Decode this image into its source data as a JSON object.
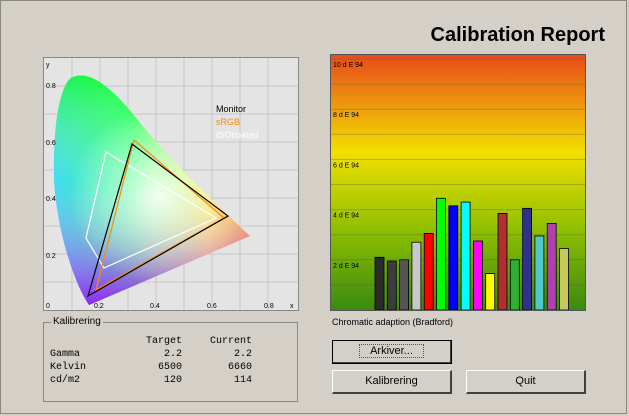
{
  "title": "Calibration Report",
  "gamut_chart": {
    "axis_x_label": "x",
    "axis_y_label": "y",
    "x_ticks": [
      "0",
      "0.2",
      "0.4",
      "0.6",
      "0.8"
    ],
    "y_ticks": [
      "0.2",
      "0.4",
      "0.6",
      "0.8"
    ],
    "legend": [
      {
        "name": "Monitor",
        "color": "#000000"
      },
      {
        "name": "sRGB",
        "color": "#ff8a00"
      },
      {
        "name": "ISOcoated",
        "color": "#ffffff"
      }
    ]
  },
  "chart_data": {
    "type": "bar",
    "y_tick_labels": [
      "2 d E 94",
      "4 d E 94",
      "6 d E 94",
      "8 d E 94",
      "10 d E 94"
    ],
    "ylim": [
      0,
      10
    ],
    "grid": true,
    "values": [
      2.1,
      1.95,
      2.0,
      2.7,
      3.05,
      4.45,
      4.15,
      4.3,
      2.75,
      1.45,
      3.85,
      2.0,
      4.05,
      2.95,
      3.45,
      2.45
    ],
    "colors": [
      "#2a2a2a",
      "#3c3c3c",
      "#555555",
      "#c8c8c8",
      "#ff0000",
      "#00ff00",
      "#0000ff",
      "#00ffff",
      "#ff00ff",
      "#ffff00",
      "#b03030",
      "#30b030",
      "#303090",
      "#50c8c8",
      "#b040b0",
      "#c8c860"
    ]
  },
  "caption": "Chromatic adaption (Bradford)",
  "kalibrering": {
    "group_title": "Kalibrering",
    "col_target": "Target",
    "col_current": "Current",
    "rows": [
      {
        "label": "Gamma",
        "target": "2.2",
        "current": "2.2"
      },
      {
        "label": "Kelvin",
        "target": "6500",
        "current": "6660"
      },
      {
        "label": "cd/m2",
        "target": "120",
        "current": "114"
      }
    ]
  },
  "buttons": {
    "arkiver": "Arkiver...",
    "kalibrering": "Kalibrering",
    "quit": "Quit"
  }
}
